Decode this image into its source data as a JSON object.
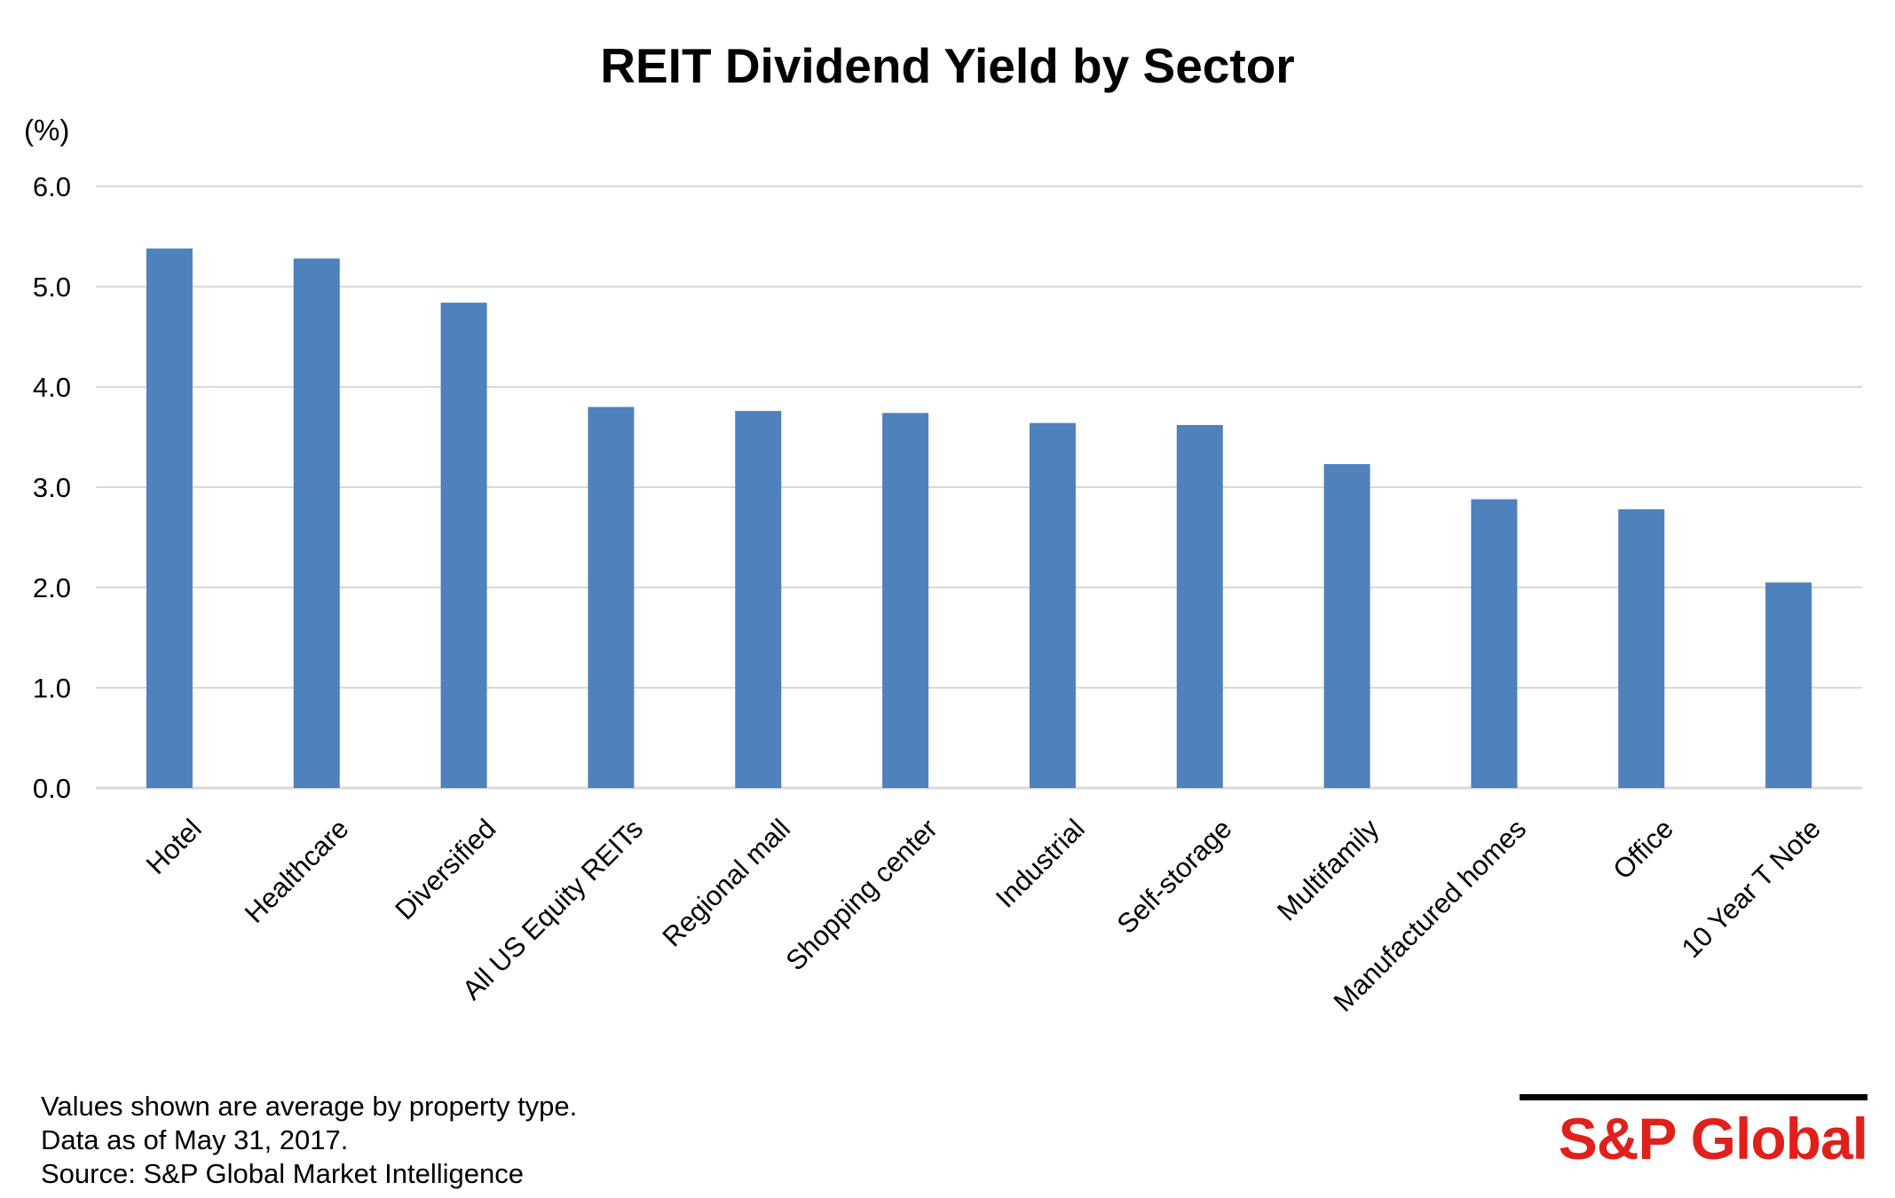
{
  "chart_data": {
    "type": "bar",
    "title": "REIT Dividend Yield by Sector",
    "y_unit_label": "(%)",
    "xlabel": "",
    "ylabel": "",
    "ylim": [
      0,
      6
    ],
    "y_ticks": [
      "0.0",
      "1.0",
      "2.0",
      "3.0",
      "4.0",
      "5.0",
      "6.0"
    ],
    "grid": true,
    "categories": [
      "Hotel",
      "Healthcare",
      "Diversified",
      "All US Equity REITs",
      "Regional mall",
      "Shopping center",
      "Industrial",
      "Self-storage",
      "Multifamily",
      "Manufactured homes",
      "Office",
      "10 Year T Note"
    ],
    "values": [
      5.38,
      5.28,
      4.84,
      3.8,
      3.76,
      3.74,
      3.64,
      3.62,
      3.23,
      2.88,
      2.78,
      2.05
    ],
    "bar_color": "#4F81BD",
    "grid_color": "#D9D9D9"
  },
  "footnotes": [
    "Values shown are average by property type.",
    "Data as of May 31, 2017.",
    "Source: S&P Global Market Intelligence"
  ],
  "brand": {
    "name": "S&P Global",
    "color": "#E0201B"
  }
}
